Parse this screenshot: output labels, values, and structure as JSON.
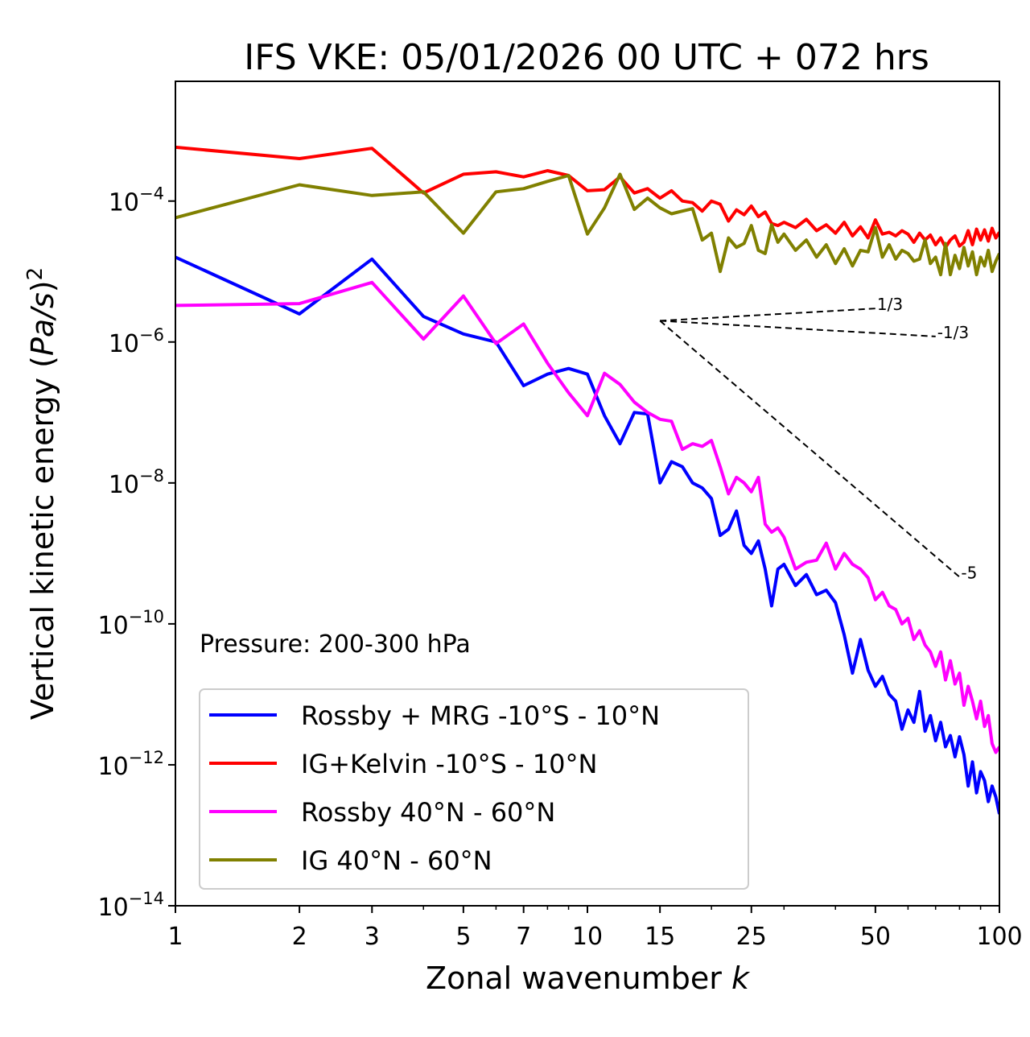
{
  "chart_data": {
    "type": "line",
    "title": "IFS VKE: 05/01/2026 00 UTC + 072 hrs",
    "xlabel": "Zonal wavenumber k",
    "ylabel": "Vertical kinetic energy (Pa/s)^2",
    "xscale": "log",
    "yscale": "log",
    "xlim": [
      1,
      100
    ],
    "ylim": [
      1e-14,
      0.005
    ],
    "xticks": [
      1,
      2,
      3,
      5,
      7,
      10,
      15,
      25,
      50,
      100
    ],
    "xtick_labels": [
      "1",
      "2",
      "3",
      "5",
      "7",
      "10",
      "15",
      "25",
      "50",
      "100"
    ],
    "yticks": [
      -14,
      -12,
      -10,
      -8,
      -6,
      -4
    ],
    "ytick_labels": [
      {
        "base": "10",
        "exp": "−14"
      },
      {
        "base": "10",
        "exp": "−12"
      },
      {
        "base": "10",
        "exp": "−10"
      },
      {
        "base": "10",
        "exp": "−8"
      },
      {
        "base": "10",
        "exp": "−6"
      },
      {
        "base": "10",
        "exp": "−4"
      }
    ],
    "grid": false,
    "legend_position": "lower-left",
    "annotation": "Pressure: 200-300 hPa",
    "reference_slopes": {
      "origin": {
        "k": 15,
        "value": 2e-06
      },
      "lines": [
        {
          "label": "1/3",
          "slope": 0.333,
          "k_end": 50
        },
        {
          "label": "-1/3",
          "slope": -0.333,
          "k_end": 70
        },
        {
          "label": "-5",
          "slope": -5,
          "k_end": 80
        }
      ]
    },
    "series": [
      {
        "name": "Rossby + MRG -10°S - 10°N",
        "color": "#0000ff",
        "x": [
          1,
          2,
          3,
          4,
          5,
          6,
          7,
          8,
          9,
          10,
          11,
          12,
          13,
          14,
          15,
          16,
          17,
          18,
          19,
          20,
          21,
          22,
          23,
          24,
          25,
          26,
          27,
          28,
          29,
          30,
          32,
          34,
          36,
          38,
          40,
          42,
          44,
          46,
          48,
          50,
          52,
          54,
          56,
          58,
          60,
          62,
          64,
          66,
          68,
          70,
          72,
          74,
          76,
          78,
          80,
          82,
          84,
          86,
          88,
          90,
          92,
          94,
          96,
          98,
          100
        ],
        "values": [
          1.6e-05,
          2.5e-06,
          1.5e-05,
          2.3e-06,
          1.3e-06,
          1e-06,
          2.4e-07,
          3.5e-07,
          4.2e-07,
          3.5e-07,
          9e-08,
          3.6e-08,
          1e-07,
          9.5e-08,
          1e-08,
          2e-08,
          1.7e-08,
          1e-08,
          8.5e-09,
          6e-09,
          1.8e-09,
          2.2e-09,
          4e-09,
          1.3e-09,
          1e-09,
          1.5e-09,
          6e-10,
          1.8e-10,
          6e-10,
          7e-10,
          3.5e-10,
          5e-10,
          2.6e-10,
          3e-10,
          2e-10,
          7e-11,
          2e-11,
          6e-11,
          2.2e-11,
          1.3e-11,
          1.8e-11,
          1e-11,
          8e-12,
          3.2e-12,
          6e-12,
          4e-12,
          1.1e-11,
          3e-12,
          5e-12,
          2.2e-12,
          4e-12,
          1.8e-12,
          2.6e-12,
          1.3e-12,
          2.5e-12,
          1.4e-12,
          5e-13,
          1.1e-12,
          4e-13,
          8e-13,
          6e-13,
          3e-13,
          5e-13,
          3.5e-13,
          2e-13
        ]
      },
      {
        "name": "IG+Kelvin -10°S - 10°N",
        "color": "#ff0000",
        "x": [
          1,
          2,
          3,
          4,
          5,
          6,
          7,
          8,
          9,
          10,
          11,
          12,
          13,
          14,
          15,
          16,
          17,
          18,
          19,
          20,
          21,
          22,
          23,
          24,
          25,
          26,
          27,
          28,
          29,
          30,
          32,
          34,
          36,
          38,
          40,
          42,
          44,
          46,
          48,
          50,
          52,
          54,
          56,
          58,
          60,
          62,
          64,
          66,
          68,
          70,
          72,
          74,
          76,
          78,
          80,
          82,
          84,
          86,
          88,
          90,
          92,
          94,
          96,
          98,
          100
        ],
        "values": [
          0.00058,
          0.0004,
          0.00056,
          0.00013,
          0.00024,
          0.00026,
          0.00022,
          0.00027,
          0.00023,
          0.00014,
          0.000145,
          0.00022,
          0.00013,
          0.00015,
          0.00011,
          0.00014,
          0.0001,
          9.5e-05,
          7.2e-05,
          0.0001,
          9e-05,
          5.2e-05,
          7.5e-05,
          6.4e-05,
          8.5e-05,
          6e-05,
          7e-05,
          4.8e-05,
          4.5e-05,
          5e-05,
          4.2e-05,
          5.5e-05,
          3.8e-05,
          4.6e-05,
          3.5e-05,
          5e-05,
          3.2e-05,
          4.3e-05,
          3e-05,
          5.4e-05,
          3.4e-05,
          3.6e-05,
          3.2e-05,
          3.8e-05,
          3.4e-05,
          2.6e-05,
          3.5e-05,
          2.8e-05,
          3.3e-05,
          2.4e-05,
          3e-05,
          2.2e-05,
          2.8e-05,
          3.2e-05,
          2.3e-05,
          2.6e-05,
          3.8e-05,
          2.4e-05,
          4e-05,
          2.8e-05,
          3.9e-05,
          2.7e-05,
          4.1e-05,
          3e-05,
          3.6e-05
        ]
      },
      {
        "name": "Rossby 40°N - 60°N",
        "color": "#ff00ff",
        "x": [
          1,
          2,
          3,
          4,
          5,
          6,
          7,
          8,
          9,
          10,
          11,
          12,
          13,
          14,
          15,
          16,
          17,
          18,
          19,
          20,
          21,
          22,
          23,
          24,
          25,
          26,
          27,
          28,
          29,
          30,
          32,
          34,
          36,
          38,
          40,
          42,
          44,
          46,
          48,
          50,
          52,
          54,
          56,
          58,
          60,
          62,
          64,
          66,
          68,
          70,
          72,
          74,
          76,
          78,
          80,
          82,
          84,
          86,
          88,
          90,
          92,
          94,
          96,
          98,
          100
        ],
        "values": [
          3.3e-06,
          3.5e-06,
          7e-06,
          1.1e-06,
          4.5e-06,
          9.5e-07,
          1.8e-06,
          5e-07,
          1.9e-07,
          9e-08,
          3.6e-07,
          2.5e-07,
          1.4e-07,
          1e-07,
          8e-08,
          7.5e-08,
          3e-08,
          3.6e-08,
          3.3e-08,
          4e-08,
          1.7e-08,
          7e-09,
          1.2e-08,
          1e-08,
          7.5e-09,
          1.2e-08,
          2.6e-09,
          2e-09,
          2.3e-09,
          1.7e-09,
          6e-10,
          7.5e-10,
          8e-10,
          1.4e-09,
          6e-10,
          1e-09,
          7e-10,
          6e-10,
          4.5e-10,
          2.2e-10,
          2.8e-10,
          1.8e-10,
          1.6e-10,
          1e-10,
          1.2e-10,
          6e-11,
          8e-11,
          5e-11,
          4e-11,
          2.5e-11,
          4e-11,
          1.6e-11,
          3e-11,
          1.4e-11,
          2e-11,
          7e-12,
          1.3e-11,
          8e-12,
          4.5e-12,
          8e-12,
          3.5e-12,
          5e-12,
          2e-12,
          1.5e-12,
          1.8e-12
        ]
      },
      {
        "name": "IG 40°N - 60°N",
        "color": "#808000",
        "x": [
          1,
          2,
          3,
          4,
          5,
          6,
          7,
          8,
          9,
          10,
          11,
          12,
          13,
          14,
          15,
          16,
          17,
          18,
          19,
          20,
          21,
          22,
          23,
          24,
          25,
          26,
          27,
          28,
          29,
          30,
          32,
          34,
          36,
          38,
          40,
          42,
          44,
          46,
          48,
          50,
          52,
          54,
          56,
          58,
          60,
          62,
          64,
          66,
          68,
          70,
          72,
          74,
          76,
          78,
          80,
          82,
          84,
          86,
          88,
          90,
          92,
          94,
          96,
          98,
          100
        ],
        "values": [
          5.8e-05,
          0.00017,
          0.00012,
          0.000135,
          3.5e-05,
          0.000135,
          0.00015,
          0.00019,
          0.00023,
          3.4e-05,
          8e-05,
          0.00024,
          7.6e-05,
          0.00011,
          8e-05,
          6.6e-05,
          7.2e-05,
          7.8e-05,
          2.8e-05,
          3.5e-05,
          1e-05,
          3e-05,
          2.2e-05,
          2.5e-05,
          4.5e-05,
          2e-05,
          1.8e-05,
          4.6e-05,
          2.6e-05,
          3.4e-05,
          2e-05,
          2.8e-05,
          1.6e-05,
          2.4e-05,
          1.3e-05,
          2.1e-05,
          1.2e-05,
          2e-05,
          1.9e-05,
          4.2e-05,
          1.6e-05,
          2.4e-05,
          1.5e-05,
          2e-05,
          1.8e-05,
          1.4e-05,
          1.5e-05,
          2.8e-05,
          1.3e-05,
          1.6e-05,
          9e-06,
          2.5e-05,
          9e-06,
          1.7e-05,
          1.1e-05,
          2.2e-05,
          1.2e-05,
          1.9e-05,
          9e-06,
          1.6e-05,
          1.2e-05,
          2e-05,
          1e-05,
          1.4e-05,
          1.8e-05
        ]
      }
    ]
  }
}
